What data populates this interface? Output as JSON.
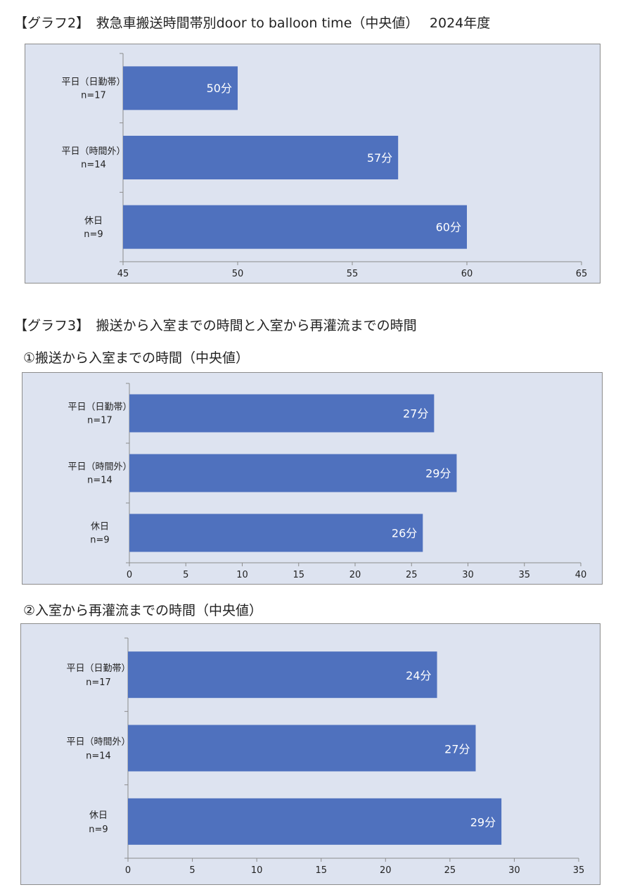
{
  "graph2": {
    "heading": "【グラフ2】　救急車搬送時間帯別door to balloon time（中央値）　 2024年度"
  },
  "graph3": {
    "heading": "【グラフ3】　搬送から入室までの時間と入室から再灌流までの時間",
    "sub1": "①搬送から入室までの時間（中央値）",
    "sub2": "②入室から再灌流までの時間（中央値）"
  },
  "chart_data": [
    {
      "type": "bar",
      "orientation": "horizontal",
      "categories": [
        [
          "平日（日勤帯）",
          "n=17"
        ],
        [
          "平日（時間外）",
          "n=14"
        ],
        [
          "休日",
          "n=9"
        ]
      ],
      "values": [
        50,
        57,
        60
      ],
      "data_labels": [
        "50分",
        "57分",
        "60分"
      ],
      "xlim": [
        45,
        65
      ],
      "ticks": [
        45,
        50,
        55,
        60,
        65
      ],
      "grid": false,
      "color": "#4f71be"
    },
    {
      "type": "bar",
      "orientation": "horizontal",
      "categories": [
        [
          "平日（日勤帯）",
          "n=17"
        ],
        [
          "平日（時間外）",
          "n=14"
        ],
        [
          "休日",
          "n=9"
        ]
      ],
      "values": [
        27,
        29,
        26
      ],
      "data_labels": [
        "27分",
        "29分",
        "26分"
      ],
      "xlim": [
        0,
        40
      ],
      "ticks": [
        0,
        5,
        10,
        15,
        20,
        25,
        30,
        35,
        40
      ],
      "grid": false,
      "color": "#4f71be"
    },
    {
      "type": "bar",
      "orientation": "horizontal",
      "categories": [
        [
          "平日（日勤帯）",
          "n=17"
        ],
        [
          "平日（時間外）",
          "n=14"
        ],
        [
          "休日",
          "n=9"
        ]
      ],
      "values": [
        24,
        27,
        29
      ],
      "data_labels": [
        "24分",
        "27分",
        "29分"
      ],
      "xlim": [
        0,
        35
      ],
      "ticks": [
        0,
        5,
        10,
        15,
        20,
        25,
        30,
        35
      ],
      "grid": false,
      "color": "#4f71be"
    }
  ]
}
